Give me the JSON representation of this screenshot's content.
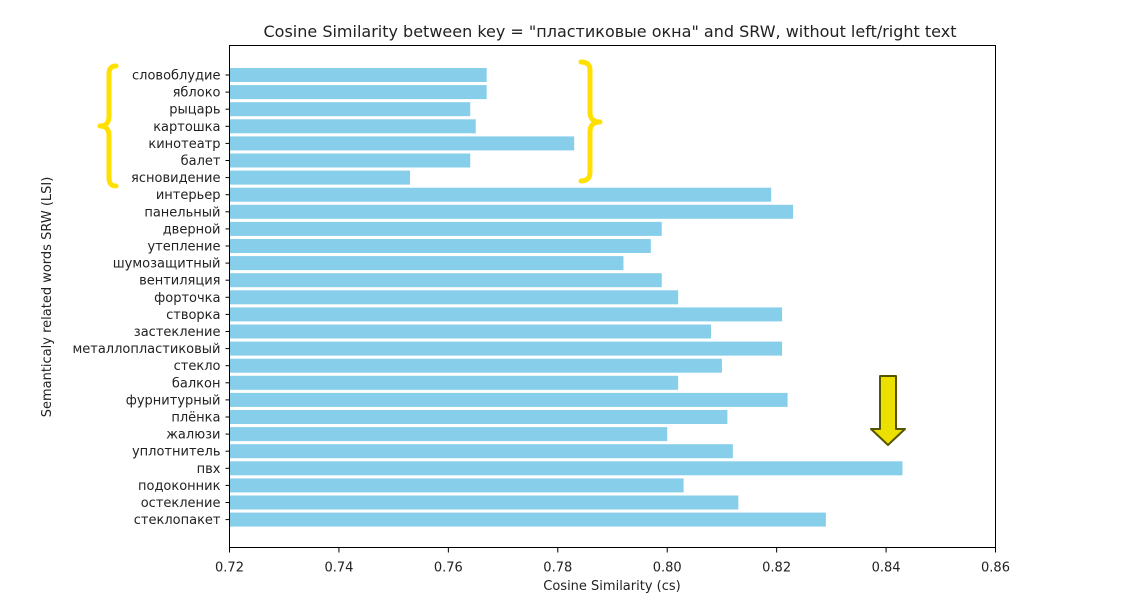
{
  "chart_data": {
    "type": "bar",
    "orientation": "horizontal",
    "title": "Cosine Similarity between key = \"пластиковые окна\" and SRW, without left/right text",
    "xlabel": "Cosine Similarity (cs)",
    "ylabel": "Semanticaly related words SRW (LSI)",
    "xlim": [
      0.72,
      0.86
    ],
    "xticks": [
      "0.72",
      "0.74",
      "0.76",
      "0.78",
      "0.80",
      "0.82",
      "0.84",
      "0.86"
    ],
    "grid": false,
    "bar_color": "#87ceeb",
    "categories": [
      "словоблудие",
      "яблоко",
      "рыцарь",
      "картошка",
      "кинотеатр",
      "балет",
      "ясновидение",
      "интерьер",
      "панельный",
      "дверной",
      "утепление",
      "шумозащитный",
      "вентиляция",
      "форточка",
      "створка",
      "застекление",
      "металлопластиковый",
      "стекло",
      "балкон",
      "фурнитурный",
      "плёнка",
      "жалюзи",
      "уплотнитель",
      "пвх",
      "подоконник",
      "остекление",
      "стеклопакет"
    ],
    "values": [
      0.767,
      0.767,
      0.764,
      0.765,
      0.783,
      0.764,
      0.753,
      0.819,
      0.823,
      0.799,
      0.797,
      0.792,
      0.799,
      0.802,
      0.821,
      0.808,
      0.821,
      0.81,
      0.802,
      0.822,
      0.811,
      0.8,
      0.812,
      0.843,
      0.803,
      0.813,
      0.829
    ],
    "annotations": {
      "brackets": {
        "color": "#ffe000",
        "group": "first 7 categories (unrelated words)"
      },
      "arrow": {
        "color": "#e6d800",
        "target_category": "пвх"
      }
    }
  }
}
